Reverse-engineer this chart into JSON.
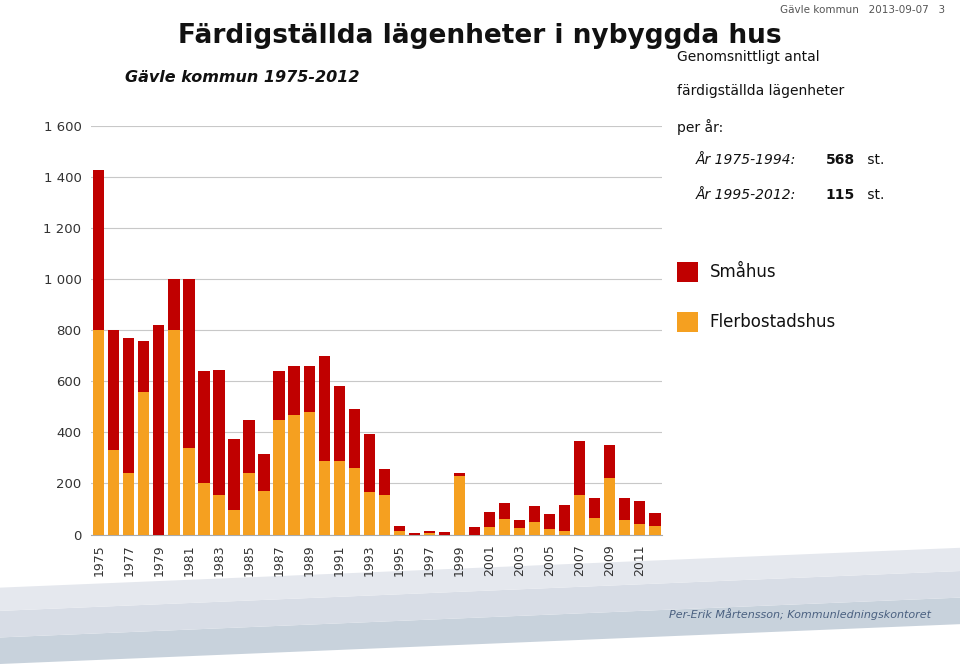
{
  "title": "Färdigställda lägenheter i nybyggda hus",
  "subtitle": "Gävle kommun 1975-2012",
  "header": "Gävle kommun   2013-09-07   3",
  "footer": "Per-Erik Mårtensson; Kommunledningskontoret",
  "legend_labels": [
    "Småhus",
    "Flerbostadshus"
  ],
  "smahus_color": "#C00000",
  "flerbostadshus_color": "#F5A020",
  "years": [
    1975,
    1976,
    1977,
    1978,
    1979,
    1980,
    1981,
    1982,
    1983,
    1984,
    1985,
    1986,
    1987,
    1988,
    1989,
    1990,
    1991,
    1992,
    1993,
    1994,
    1995,
    1996,
    1997,
    1998,
    1999,
    2000,
    2001,
    2002,
    2003,
    2004,
    2005,
    2006,
    2007,
    2008,
    2009,
    2010,
    2011,
    2012
  ],
  "smahus": [
    630,
    470,
    530,
    200,
    820,
    200,
    660,
    440,
    490,
    280,
    210,
    145,
    190,
    190,
    180,
    410,
    290,
    230,
    230,
    100,
    20,
    5,
    10,
    10,
    10,
    30,
    60,
    65,
    30,
    60,
    60,
    100,
    210,
    80,
    130,
    90,
    90,
    50
  ],
  "flerbostadshus": [
    800,
    330,
    240,
    560,
    0,
    800,
    340,
    200,
    155,
    95,
    240,
    170,
    450,
    470,
    480,
    290,
    290,
    260,
    165,
    155,
    15,
    0,
    5,
    0,
    230,
    0,
    30,
    60,
    25,
    50,
    20,
    15,
    155,
    65,
    220,
    55,
    40,
    35
  ],
  "ylim": [
    0,
    1600
  ],
  "yticks": [
    0,
    200,
    400,
    600,
    800,
    1000,
    1200,
    1400,
    1600
  ],
  "ytick_labels": [
    "0",
    "200",
    "400",
    "600",
    "800",
    "1 000",
    "1 200",
    "1 400",
    "1 600"
  ],
  "xtick_years": [
    1975,
    1977,
    1979,
    1981,
    1983,
    1985,
    1987,
    1989,
    1991,
    1993,
    1995,
    1997,
    1999,
    2001,
    2003,
    2005,
    2007,
    2009,
    2011
  ],
  "background_color": "#FFFFFF",
  "grid_color": "#C8C8C8",
  "band_colors": [
    "#B8C4D0",
    "#CAD2DC",
    "#D8DDE6",
    "#E8EBF0"
  ],
  "footer_color": "#4A6080"
}
